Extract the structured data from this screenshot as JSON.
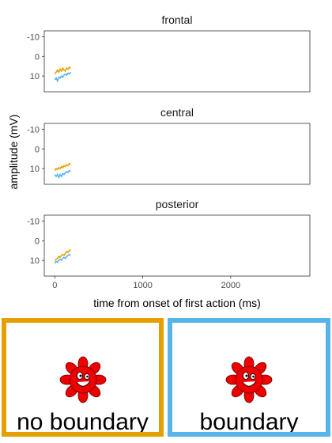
{
  "chart_data": {
    "type": "line",
    "panels": [
      {
        "title": "frontal",
        "series": [
          {
            "color": "#E69F00",
            "x": [
              0,
              15,
              30,
              45,
              60,
              75,
              90,
              105,
              120,
              135,
              150,
              165,
              180
            ],
            "y": [
              9,
              8,
              7,
              8,
              6.5,
              7.5,
              6,
              7,
              7.5,
              6,
              6.5,
              5.5,
              6
            ]
          },
          {
            "color": "#56B4E9",
            "x": [
              0,
              15,
              30,
              45,
              60,
              75,
              90,
              105,
              120,
              135,
              150,
              165,
              180
            ],
            "y": [
              12,
              11,
              12.5,
              10.5,
              11,
              10,
              10.5,
              9.5,
              9,
              9.5,
              8.5,
              9,
              8
            ]
          }
        ]
      },
      {
        "title": "central",
        "series": [
          {
            "color": "#E69F00",
            "x": [
              0,
              15,
              30,
              45,
              60,
              75,
              90,
              105,
              120,
              135,
              150,
              165,
              180
            ],
            "y": [
              11,
              10,
              10.5,
              9.5,
              10,
              9,
              9.5,
              8.5,
              9,
              8,
              8.5,
              7.5,
              7.5
            ]
          },
          {
            "color": "#56B4E9",
            "x": [
              0,
              15,
              30,
              45,
              60,
              75,
              90,
              105,
              120,
              135,
              150,
              165,
              180
            ],
            "y": [
              13,
              14,
              13,
              14.5,
              13,
              14,
              12.5,
              13,
              12,
              11.5,
              12,
              11,
              11.5
            ]
          }
        ]
      },
      {
        "title": "posterior",
        "series": [
          {
            "color": "#E69F00",
            "x": [
              0,
              15,
              30,
              45,
              60,
              75,
              90,
              105,
              120,
              135,
              150,
              165,
              180
            ],
            "y": [
              10,
              9.5,
              9,
              8,
              8.5,
              7.5,
              7,
              7.5,
              6.5,
              5.5,
              6,
              5,
              4.5
            ]
          },
          {
            "color": "#56B4E9",
            "x": [
              0,
              15,
              30,
              45,
              60,
              75,
              90,
              105,
              120,
              135,
              150,
              165,
              180
            ],
            "y": [
              11.5,
              10.5,
              11,
              10,
              9.5,
              10,
              9,
              8.5,
              9,
              8,
              7.5,
              7,
              7.5
            ]
          }
        ]
      }
    ],
    "xlabel": "time from onset of first action (ms)",
    "ylabel": "amplitude (mV)",
    "xlim": [
      -120,
      2900
    ],
    "ylim": [
      -13,
      18
    ],
    "y_reversed": true,
    "xticks": [
      0,
      1000,
      2000
    ],
    "yticks": [
      -10,
      0,
      10
    ],
    "grid": false
  },
  "legend": [
    {
      "label": "no boundary",
      "color": "#E69F00"
    },
    {
      "label": "boundary",
      "color": "#56B4E9"
    }
  ]
}
